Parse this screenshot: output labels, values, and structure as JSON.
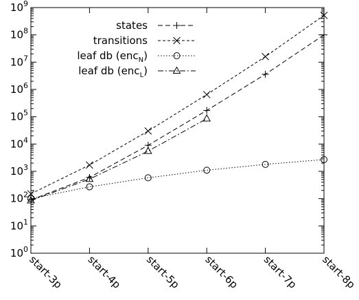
{
  "chart_data": {
    "type": "line",
    "title": "",
    "xlabel": "",
    "ylabel": "",
    "categories": [
      "start-3p",
      "start-4p",
      "start-5p",
      "start-6p",
      "start-7p",
      "start-8p"
    ],
    "y_scale": "log",
    "y_base": "10",
    "ylim": [
      1,
      1000000000
    ],
    "y_tick_exponents": [
      "0",
      "1",
      "2",
      "3",
      "4",
      "5",
      "6",
      "7",
      "8",
      "9"
    ],
    "grid": false,
    "legend_position": "top-left",
    "series": [
      {
        "name": "states",
        "marker": "plus",
        "dash": "long-dash",
        "values": [
          90,
          600,
          9000,
          170000,
          3600000,
          100000000
        ]
      },
      {
        "name": "transitions",
        "marker": "cross",
        "dash": "short-dash",
        "values": [
          150,
          1700,
          30000,
          650000,
          16000000,
          520000000
        ]
      },
      {
        "name": "leaf db (enc",
        "name_sub": "N",
        "name_suffix": ")",
        "marker": "circle",
        "dash": "dotted",
        "values": [
          100,
          270,
          580,
          1100,
          1800,
          2700
        ]
      },
      {
        "name": "leaf db (enc",
        "name_sub": "L",
        "name_suffix": ")",
        "marker": "triangle",
        "dash": "dash-dot",
        "values": [
          85,
          520,
          5500,
          85000,
          null,
          null
        ]
      }
    ]
  }
}
